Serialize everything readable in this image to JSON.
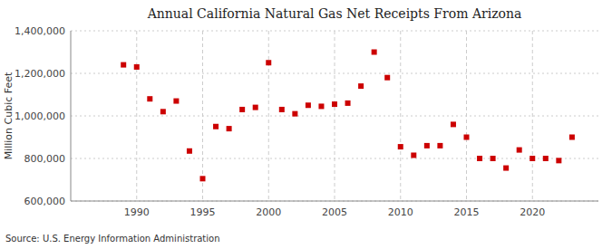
{
  "chart_data": {
    "type": "scatter",
    "title": "Annual California Natural Gas Net Receipts From Arizona",
    "ylabel": "Million Cubic Feet",
    "source": "Source: U.S. Energy Information Administration",
    "x": [
      1989,
      1990,
      1991,
      1992,
      1993,
      1994,
      1995,
      1996,
      1997,
      1998,
      1999,
      2000,
      2001,
      2002,
      2003,
      2004,
      2005,
      2006,
      2007,
      2008,
      2009,
      2010,
      2011,
      2012,
      2013,
      2014,
      2015,
      2016,
      2017,
      2018,
      2019,
      2020,
      2021,
      2022,
      2023
    ],
    "values": [
      1240000,
      1230000,
      1080000,
      1020000,
      1070000,
      835000,
      705000,
      950000,
      940000,
      1030000,
      1040000,
      1250000,
      1030000,
      1010000,
      1050000,
      1045000,
      1055000,
      1060000,
      1140000,
      1300000,
      1180000,
      855000,
      815000,
      860000,
      860000,
      960000,
      900000,
      800000,
      800000,
      755000,
      840000,
      800000,
      800000,
      790000,
      900000
    ],
    "color": "#cc0000",
    "marker": "square",
    "xlim": [
      1985,
      2025
    ],
    "xticks": [
      1990,
      1995,
      2000,
      2005,
      2010,
      2015,
      2020
    ],
    "ylim": [
      600000,
      1400000
    ],
    "yticks": [
      {
        "value": 600000,
        "label": "600,000"
      },
      {
        "value": 800000,
        "label": "800,000"
      },
      {
        "value": 1000000,
        "label": "1,000,000"
      },
      {
        "value": 1200000,
        "label": "1,200,000"
      },
      {
        "value": 1400000,
        "label": "1,400,000"
      }
    ],
    "grid": true
  }
}
